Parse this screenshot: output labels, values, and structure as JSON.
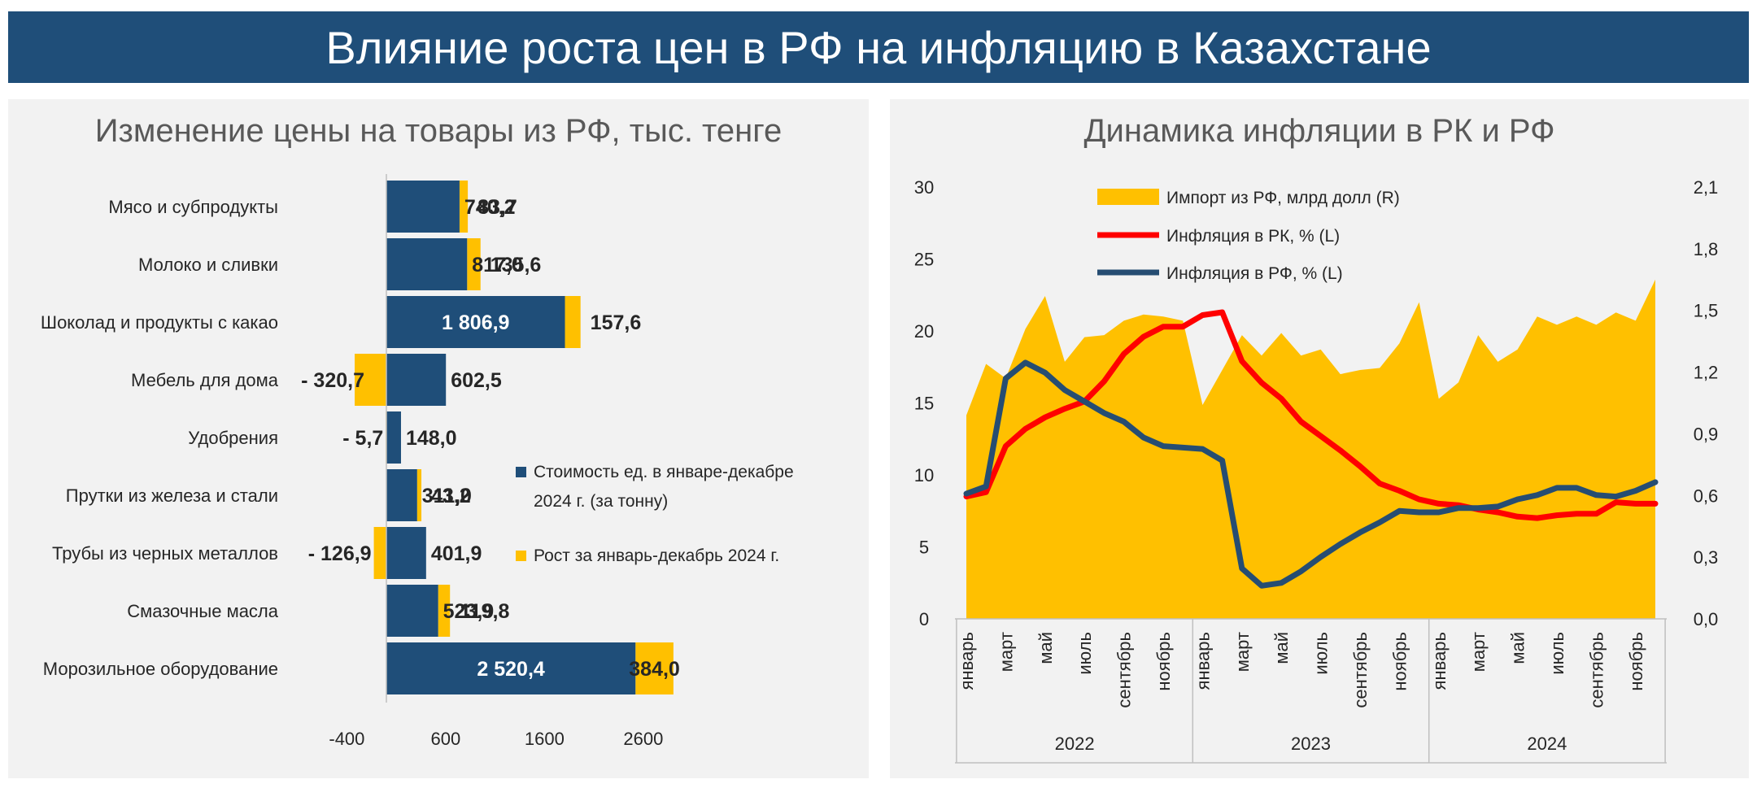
{
  "page_title": "Влияние роста цен в РФ на инфляцию в Казахстане",
  "colors": {
    "navy": "#1f4e79",
    "gold": "#ffc000",
    "red": "#ff0000",
    "blue": "#264d72",
    "panel_bg": "#f2f2f2"
  },
  "chart_data": [
    {
      "type": "bar",
      "stacked": true,
      "orientation": "horizontal",
      "title": "Изменение цены на товары из РФ, тыс. тенге",
      "categories": [
        "Мясо и субпродукты",
        "Молоко и сливки",
        "Шоколад и продукты с какао",
        "Мебель для дома",
        "Удобрения",
        "Прутки из железа и стали",
        "Трубы из черных металлов",
        "Смазочные масла",
        "Морозильное оборудование"
      ],
      "series": [
        {
          "name": "Стоимость ед. в январе-декабре 2024 г. (за тонну)",
          "color": "#1f4e79",
          "values": [
            740.2,
            817.0,
            1806.9,
            602.5,
            148.0,
            311.0,
            401.9,
            523.9,
            2520.4
          ],
          "labels": [
            "740,2",
            "817,0",
            "1 806,9",
            "602,5",
            "148,0",
            "311,0",
            "401,9",
            "523,9",
            "2 520,4"
          ]
        },
        {
          "name": "Рост за январь-декабрь 2024 г.",
          "color": "#ffc000",
          "values": [
            83.7,
            135.6,
            157.6,
            -320.7,
            -5.7,
            43.2,
            -126.9,
            119.8,
            384.0
          ],
          "labels": [
            "83,7",
            "135,6",
            "157,6",
            "- 320,7",
            "- 5,7",
            "43,2",
            "- 126,9",
            "119,8",
            "384,0"
          ]
        }
      ],
      "x_ticks": [
        "-400",
        "600",
        "1600",
        "2600"
      ],
      "xlim": [
        -400,
        3100
      ],
      "legend_position": "right"
    },
    {
      "type": "line",
      "title": "Динамика инфляции в РК и РФ",
      "x": [
        "2022-01",
        "2022-02",
        "2022-03",
        "2022-04",
        "2022-05",
        "2022-06",
        "2022-07",
        "2022-08",
        "2022-09",
        "2022-10",
        "2022-11",
        "2022-12",
        "2023-01",
        "2023-02",
        "2023-03",
        "2023-04",
        "2023-05",
        "2023-06",
        "2023-07",
        "2023-08",
        "2023-09",
        "2023-10",
        "2023-11",
        "2023-12",
        "2024-01",
        "2024-02",
        "2024-03",
        "2024-04",
        "2024-05",
        "2024-06",
        "2024-07",
        "2024-08",
        "2024-09",
        "2024-10",
        "2024-11",
        "2024-12"
      ],
      "x_tick_labels": [
        "январь",
        "март",
        "май",
        "июль",
        "сентябрь",
        "ноябрь",
        "январь",
        "март",
        "май",
        "июль",
        "сентябрь",
        "ноябрь",
        "январь",
        "март",
        "май",
        "июль",
        "сентябрь",
        "ноябрь"
      ],
      "year_labels": [
        "2022",
        "2023",
        "2024"
      ],
      "series": [
        {
          "name": "Импорт из РФ, млрд долл (R)",
          "type": "area",
          "axis": "right",
          "color": "#ffc000",
          "values": [
            0.99,
            1.24,
            1.17,
            1.41,
            1.57,
            1.25,
            1.37,
            1.38,
            1.45,
            1.48,
            1.47,
            1.45,
            1.04,
            1.21,
            1.38,
            1.28,
            1.39,
            1.28,
            1.31,
            1.19,
            1.21,
            1.22,
            1.34,
            1.54,
            1.07,
            1.15,
            1.38,
            1.25,
            1.31,
            1.47,
            1.43,
            1.47,
            1.43,
            1.49,
            1.45,
            1.65
          ]
        },
        {
          "name": "Инфляция в РК, % (L)",
          "type": "line",
          "axis": "left",
          "color": "#ff0000",
          "values": [
            8.5,
            8.8,
            12.0,
            13.2,
            14.0,
            14.6,
            15.1,
            16.5,
            18.4,
            19.6,
            20.3,
            20.3,
            21.1,
            21.3,
            17.9,
            16.4,
            15.3,
            13.7,
            12.7,
            11.7,
            10.6,
            9.4,
            8.9,
            8.3,
            8.0,
            7.9,
            7.6,
            7.4,
            7.1,
            7.0,
            7.2,
            7.3,
            7.3,
            8.1,
            8.0,
            8.0
          ]
        },
        {
          "name": "Инфляция в РФ, % (L)",
          "type": "line",
          "axis": "left",
          "color": "#264d72",
          "values": [
            8.7,
            9.2,
            16.7,
            17.8,
            17.1,
            15.9,
            15.1,
            14.3,
            13.7,
            12.6,
            12.0,
            11.9,
            11.8,
            11.0,
            3.5,
            2.3,
            2.5,
            3.3,
            4.3,
            5.2,
            6.0,
            6.7,
            7.5,
            7.4,
            7.4,
            7.7,
            7.7,
            7.8,
            8.3,
            8.6,
            9.1,
            9.1,
            8.6,
            8.5,
            8.9,
            9.5
          ]
        }
      ],
      "y_left": {
        "lim": [
          0,
          30
        ],
        "ticks": [
          "0",
          "5",
          "10",
          "15",
          "20",
          "25",
          "30"
        ]
      },
      "y_right": {
        "lim": [
          0,
          2.1
        ],
        "ticks": [
          "0,0",
          "0,3",
          "0,6",
          "0,9",
          "1,2",
          "1,5",
          "1,8",
          "2,1"
        ]
      },
      "legend_position": "top-left"
    }
  ]
}
